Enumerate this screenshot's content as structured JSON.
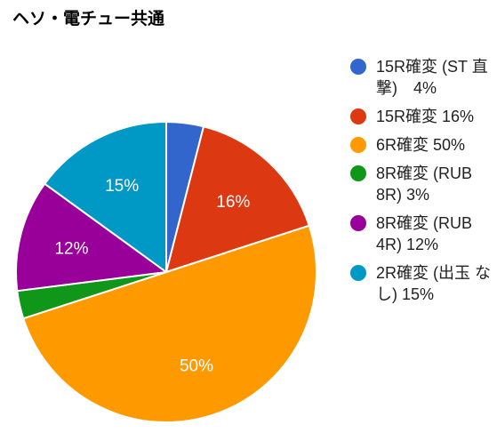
{
  "chart_data": {
    "type": "pie",
    "title": "ヘソ・電チュー共通",
    "slices": [
      {
        "label": "15R確変 (ST直撃)",
        "legend_text": "15R確変 (ST 直撃)　4%",
        "value": 4,
        "value_label": "",
        "color": "#3366cc"
      },
      {
        "label": "15R確変",
        "legend_text": "15R確変 16%",
        "value": 16,
        "value_label": "16%",
        "color": "#dc3912"
      },
      {
        "label": "6R確変",
        "legend_text": "6R確変 50%",
        "value": 50,
        "value_label": "50%",
        "color": "#ff9900"
      },
      {
        "label": "8R確変 (RUB 8R)",
        "legend_text": "8R確変 (RUB 8R) 3%",
        "value": 3,
        "value_label": "",
        "color": "#109618"
      },
      {
        "label": "8R確変 (RUB 4R)",
        "legend_text": "8R確変 (RUB 4R) 12%",
        "value": 12,
        "value_label": "12%",
        "color": "#990099"
      },
      {
        "label": "2R確変 (出玉なし)",
        "legend_text": "2R確変 (出玉 なし) 15%",
        "value": 15,
        "value_label": "15%",
        "color": "#0099c6"
      }
    ],
    "legend_position": "right"
  }
}
